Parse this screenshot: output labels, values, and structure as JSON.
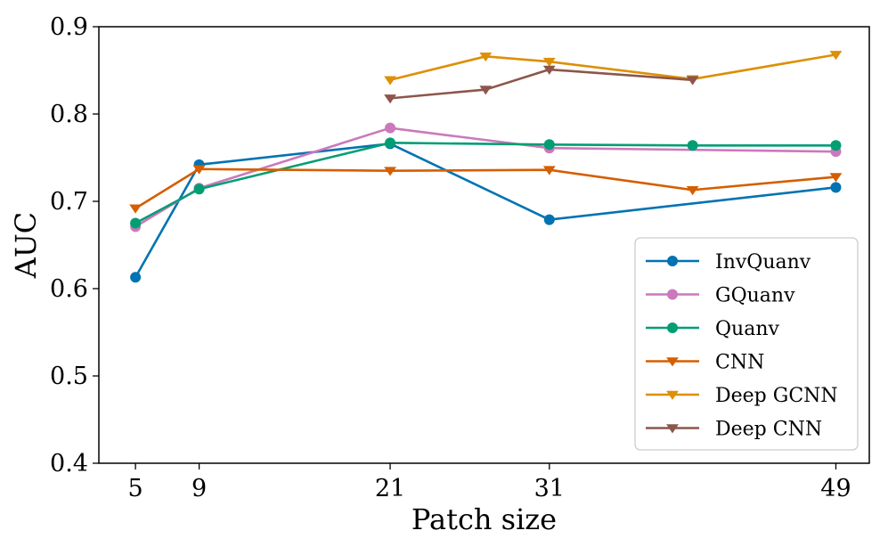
{
  "chart_data": {
    "type": "line",
    "title": "",
    "xlabel": "Patch size",
    "ylabel": "AUC",
    "xlim": [
      2.7,
      51.1
    ],
    "ylim": [
      0.4,
      0.9
    ],
    "xticks": [
      5,
      9,
      21,
      31,
      49
    ],
    "xtick_labels": [
      "5",
      "9",
      "21",
      "31",
      "49"
    ],
    "yticks": [
      0.4,
      0.5,
      0.6,
      0.7,
      0.8,
      0.9
    ],
    "ytick_labels": [
      "0.4",
      "0.5",
      "0.6",
      "0.7",
      "0.8",
      "0.9"
    ],
    "grid": false,
    "legend_position": "lower-right",
    "series": [
      {
        "name": "InvQuanv",
        "color": "#0173b2",
        "marker": "circle",
        "x": [
          5,
          9,
          21,
          31,
          49
        ],
        "y": [
          0.613,
          0.742,
          0.766,
          0.679,
          0.716
        ]
      },
      {
        "name": "GQuanv",
        "color": "#cc78bc",
        "marker": "circle",
        "x": [
          5,
          9,
          21,
          31,
          49
        ],
        "y": [
          0.671,
          0.715,
          0.784,
          0.761,
          0.757
        ]
      },
      {
        "name": "Quanv",
        "color": "#029e73",
        "marker": "circle",
        "x": [
          5,
          9,
          21,
          31,
          40,
          49
        ],
        "y": [
          0.675,
          0.714,
          0.767,
          0.765,
          0.764,
          0.764
        ]
      },
      {
        "name": "CNN",
        "color": "#d55e00",
        "marker": "triangle-down",
        "x": [
          5,
          9,
          21,
          31,
          40,
          49
        ],
        "y": [
          0.692,
          0.737,
          0.735,
          0.736,
          0.713,
          0.728
        ]
      },
      {
        "name": "Deep GCNN",
        "color": "#de8f05",
        "marker": "triangle-down",
        "x": [
          21,
          27,
          31,
          40,
          49
        ],
        "y": [
          0.839,
          0.866,
          0.86,
          0.84,
          0.868
        ]
      },
      {
        "name": "Deep CNN",
        "color": "#8c564b",
        "marker": "triangle-down",
        "x": [
          21,
          27,
          31,
          40
        ],
        "y": [
          0.818,
          0.828,
          0.851,
          0.839
        ]
      }
    ]
  }
}
